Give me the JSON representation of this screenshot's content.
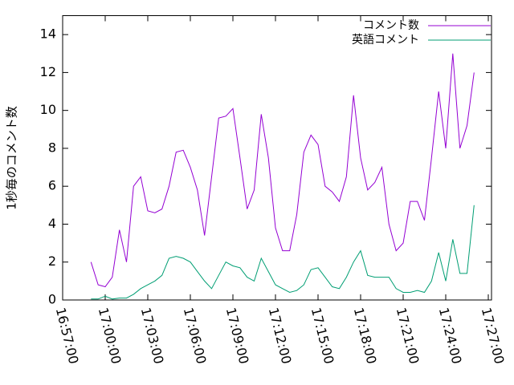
{
  "chart_data": {
    "type": "line",
    "ylabel": "1秒毎のコメント数",
    "x": [
      "16:59:00",
      "16:59:30",
      "17:00:00",
      "17:00:30",
      "17:01:00",
      "17:01:30",
      "17:02:00",
      "17:02:30",
      "17:03:00",
      "17:03:30",
      "17:04:00",
      "17:04:30",
      "17:05:00",
      "17:05:30",
      "17:06:00",
      "17:06:30",
      "17:07:00",
      "17:07:30",
      "17:08:00",
      "17:08:30",
      "17:09:00",
      "17:09:30",
      "17:10:00",
      "17:10:30",
      "17:11:00",
      "17:11:30",
      "17:12:00",
      "17:12:30",
      "17:13:00",
      "17:13:30",
      "17:14:00",
      "17:14:30",
      "17:15:00",
      "17:15:30",
      "17:16:00",
      "17:16:30",
      "17:17:00",
      "17:17:30",
      "17:18:00",
      "17:18:30",
      "17:19:00",
      "17:19:30",
      "17:20:00",
      "17:20:30",
      "17:21:00",
      "17:21:30",
      "17:22:00",
      "17:22:30",
      "17:23:00",
      "17:23:30",
      "17:24:00",
      "17:24:30",
      "17:25:00",
      "17:25:30",
      "17:26:00"
    ],
    "series": [
      {
        "name": "コメント数",
        "color": "#9400d3",
        "values": [
          2.0,
          0.8,
          0.7,
          1.2,
          3.7,
          2.0,
          6.0,
          6.5,
          4.7,
          4.6,
          4.8,
          6.0,
          7.8,
          7.9,
          7.0,
          5.8,
          3.4,
          6.5,
          9.6,
          9.7,
          10.1,
          7.5,
          4.8,
          5.8,
          9.8,
          7.5,
          3.8,
          2.6,
          2.6,
          4.5,
          7.8,
          8.7,
          8.2,
          6.0,
          5.7,
          5.2,
          6.5,
          10.8,
          7.5,
          5.8,
          6.2,
          7.0,
          4.0,
          2.6,
          3.0,
          5.2,
          5.2,
          4.2,
          7.5,
          11.0,
          8.0,
          13.0,
          8.0,
          9.2,
          12.0
        ]
      },
      {
        "name": "英語コメント",
        "color": "#009e73",
        "values": [
          0.05,
          0.05,
          0.2,
          0.05,
          0.1,
          0.1,
          0.3,
          0.6,
          0.8,
          1.0,
          1.3,
          2.2,
          2.3,
          2.2,
          2.0,
          1.5,
          1.0,
          0.6,
          1.3,
          2.0,
          1.8,
          1.7,
          1.2,
          1.0,
          2.2,
          1.5,
          0.8,
          0.6,
          0.4,
          0.5,
          0.8,
          1.6,
          1.7,
          1.2,
          0.7,
          0.6,
          1.2,
          2.0,
          2.6,
          1.3,
          1.2,
          1.2,
          1.2,
          0.6,
          0.4,
          0.4,
          0.5,
          0.4,
          1.0,
          2.5,
          1.0,
          3.2,
          1.4,
          1.4,
          5.0
        ]
      }
    ],
    "xlim": [
      "16:57:00",
      "17:27:00"
    ],
    "xticks": [
      "16:57:00",
      "17:00:00",
      "17:03:00",
      "17:06:00",
      "17:09:00",
      "17:12:00",
      "17:15:00",
      "17:18:00",
      "17:21:00",
      "17:24:00",
      "17:27:00"
    ],
    "ylim": [
      0,
      15
    ],
    "yticks": [
      0,
      2,
      4,
      6,
      8,
      10,
      12,
      14
    ],
    "legend": "top-right"
  }
}
